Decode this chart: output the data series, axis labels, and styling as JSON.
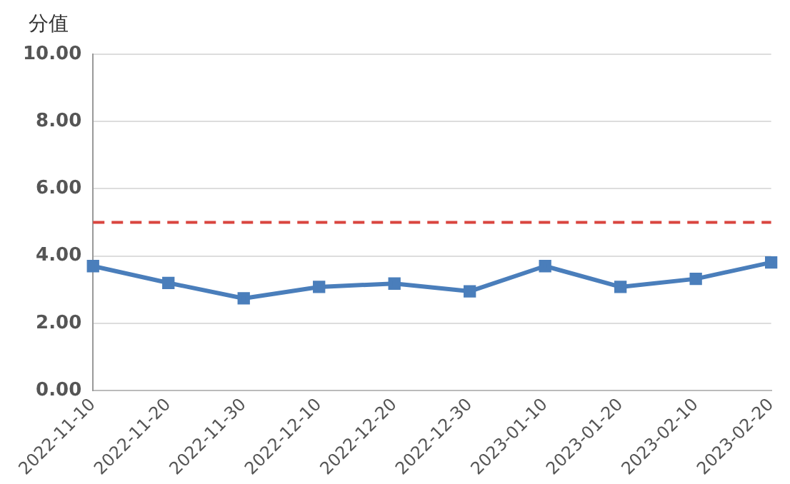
{
  "chart_data": {
    "type": "line",
    "ylabel": "分值",
    "categories": [
      "2022-11-10",
      "2022-11-20",
      "2022-11-30",
      "2022-12-10",
      "2022-12-20",
      "2022-12-30",
      "2023-01-10",
      "2023-01-20",
      "2023-02-10",
      "2023-02-20"
    ],
    "series": [
      {
        "color": "#4a7ebb",
        "values": [
          3.7,
          3.2,
          2.74,
          3.08,
          3.18,
          2.95,
          3.7,
          3.08,
          3.32,
          3.81
        ],
        "marker": "square",
        "line_style": "solid"
      },
      {
        "color": "#d9453f",
        "values": [
          5,
          5,
          5,
          5,
          5,
          5,
          5,
          5,
          5,
          5
        ],
        "marker": "none",
        "line_style": "dashed"
      }
    ],
    "ylim": [
      0,
      10
    ],
    "yticks": [
      {
        "value": 0,
        "label": "0.00"
      },
      {
        "value": 2,
        "label": "2.00"
      },
      {
        "value": 4,
        "label": "4.00"
      },
      {
        "value": 6,
        "label": "6.00"
      },
      {
        "value": 8,
        "label": "8.00"
      },
      {
        "value": 10,
        "label": "10.00"
      }
    ],
    "grid": "y",
    "legend": false
  }
}
